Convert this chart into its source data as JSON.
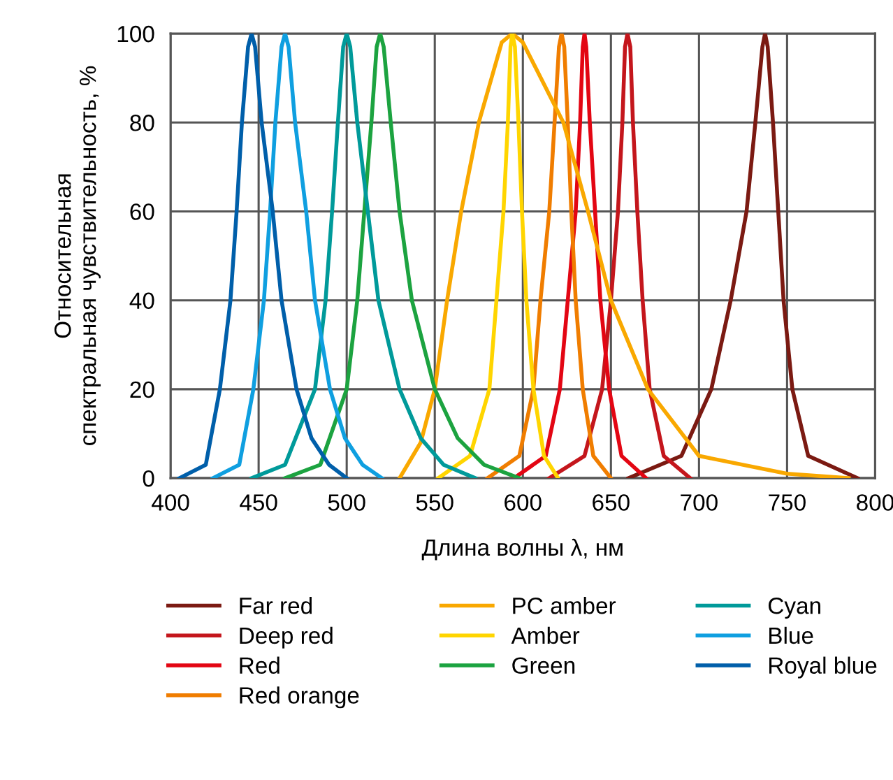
{
  "chart_data": {
    "type": "line",
    "xlabel": "Длина волны λ, нм",
    "ylabel": "Относительная\nспектральная чувствительность, %",
    "xlim": [
      400,
      800
    ],
    "ylim": [
      0,
      100
    ],
    "xticks": [
      400,
      450,
      500,
      550,
      600,
      650,
      700,
      750,
      800
    ],
    "yticks": [
      0,
      20,
      40,
      60,
      80,
      100
    ],
    "grid": true,
    "legend": "bottom",
    "marker": "none",
    "line_style": "solid",
    "series": [
      {
        "name": "Far red",
        "color": "#7b1a12",
        "x": [
          660,
          690,
          707,
          718,
          727,
          732,
          736,
          737.5,
          739,
          742,
          745,
          748,
          753,
          762,
          790
        ],
        "values": [
          0,
          5,
          20,
          40,
          60,
          80,
          97,
          100,
          97,
          80,
          60,
          40,
          20,
          5,
          0
        ]
      },
      {
        "name": "Deep red",
        "color": "#c4161c",
        "x": [
          615,
          635,
          645,
          650,
          654,
          656.5,
          658,
          659.4,
          661,
          662.5,
          665,
          668,
          672,
          680,
          695
        ],
        "values": [
          0,
          5,
          20,
          40,
          60,
          80,
          97,
          100,
          97,
          80,
          60,
          40,
          20,
          5,
          0
        ]
      },
      {
        "name": "Red",
        "color": "#e30613",
        "x": [
          595,
          613,
          621,
          625.5,
          630,
          632.5,
          634,
          635,
          636,
          638,
          641,
          644,
          649,
          656,
          670
        ],
        "values": [
          0,
          5,
          20,
          40,
          60,
          80,
          97,
          100,
          97,
          80,
          60,
          40,
          20,
          5,
          0
        ]
      },
      {
        "name": "Red orange",
        "color": "#f07d00",
        "x": [
          580,
          598,
          606,
          610,
          615,
          618,
          620.5,
          622,
          623.5,
          625.5,
          627.5,
          630,
          634,
          640,
          650
        ],
        "values": [
          0,
          5,
          20,
          40,
          60,
          80,
          97,
          100,
          97,
          80,
          60,
          40,
          20,
          5,
          0
        ]
      },
      {
        "name": "PC amber",
        "color": "#f9a800",
        "x": [
          530,
          542,
          550,
          557,
          565,
          575,
          588,
          594,
          600,
          623,
          637,
          650,
          671,
          700,
          750,
          785
        ],
        "values": [
          0,
          8,
          20,
          40,
          60,
          80,
          98,
          100,
          98,
          80,
          60,
          40,
          20,
          5,
          1,
          0
        ]
      },
      {
        "name": "Amber",
        "color": "#ffd500",
        "x": [
          552,
          570,
          581,
          585,
          589,
          591.5,
          593,
          594,
          595.5,
          597.5,
          599.5,
          602,
          606,
          612,
          620
        ],
        "values": [
          0,
          5,
          20,
          40,
          60,
          80,
          97,
          100,
          97,
          80,
          60,
          40,
          20,
          5,
          0
        ]
      },
      {
        "name": "Green",
        "color": "#1ca340",
        "x": [
          465,
          485,
          500,
          506,
          510,
          514,
          517,
          519,
          521,
          525,
          530,
          537,
          550,
          563,
          578,
          598
        ],
        "values": [
          0,
          3,
          20,
          40,
          60,
          80,
          97,
          100,
          97,
          80,
          60,
          40,
          20,
          9,
          3,
          0
        ]
      },
      {
        "name": "Cyan",
        "color": "#009a9a",
        "x": [
          446,
          465,
          482,
          488,
          491.7,
          495,
          498,
          500,
          502,
          506,
          512,
          518,
          530,
          542,
          555,
          573
        ],
        "values": [
          0,
          3,
          20,
          40,
          60,
          80,
          97,
          100,
          97,
          80,
          60,
          40,
          20,
          9,
          3,
          0
        ]
      },
      {
        "name": "Blue",
        "color": "#0f9fe0",
        "x": [
          424,
          439,
          447,
          453,
          456.5,
          459.5,
          463,
          465,
          467,
          470.7,
          477,
          482,
          490.5,
          499,
          509,
          520
        ],
        "values": [
          0,
          3,
          20,
          40,
          60,
          80,
          97,
          100,
          97,
          80,
          60,
          40,
          20,
          9,
          3,
          0
        ]
      },
      {
        "name": "Royal blue",
        "color": "#005faa",
        "x": [
          405,
          420,
          428,
          434,
          437.5,
          440.5,
          444,
          446,
          448,
          451.7,
          458,
          463,
          471.5,
          480,
          490,
          500
        ],
        "values": [
          0,
          3,
          20,
          40,
          60,
          80,
          97,
          100,
          97,
          80,
          60,
          40,
          20,
          9,
          3,
          0
        ]
      }
    ]
  }
}
